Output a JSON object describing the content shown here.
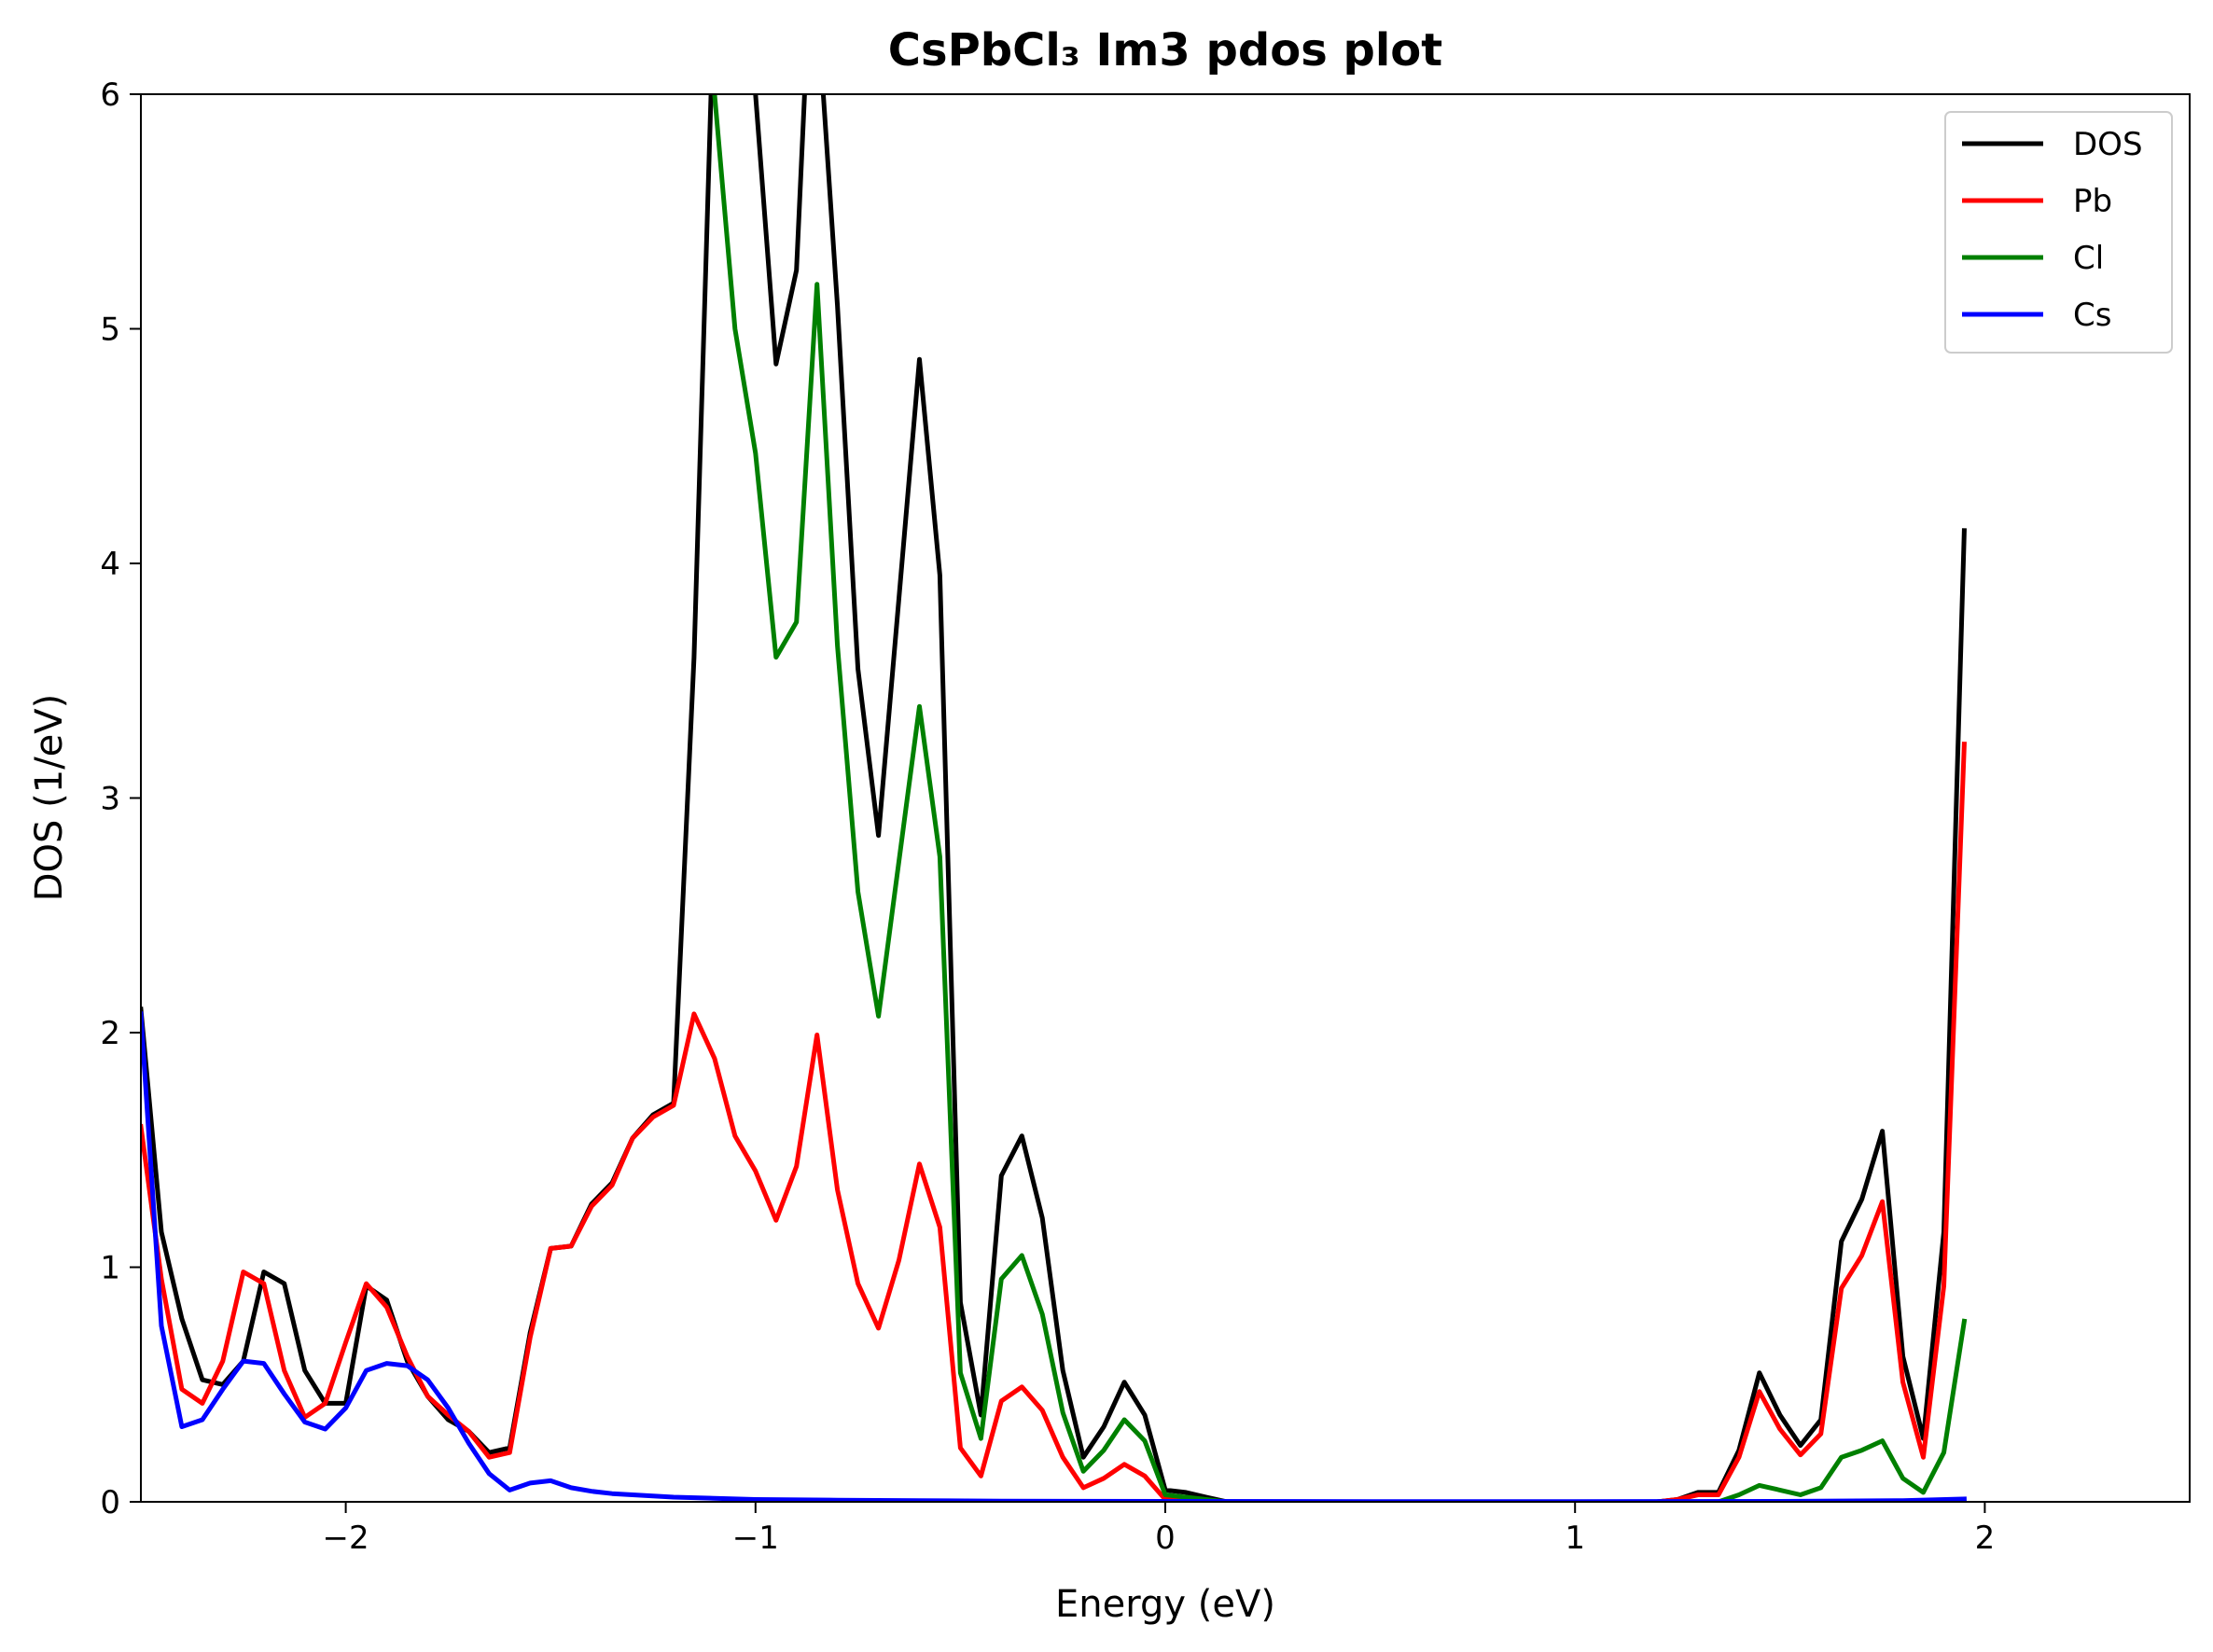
{
  "chart_data": {
    "type": "line",
    "title": "CsPbCl₃ Im3 pdos plot",
    "xlabel": "Energy (eV)",
    "ylabel": "DOS (1/eV)",
    "xlim": [
      -2.5,
      2.5
    ],
    "ylim": [
      0,
      6
    ],
    "xticks": [
      -2,
      -1,
      0,
      1,
      2
    ],
    "xtick_labels": [
      "−2",
      "−1",
      "0",
      "1",
      "2"
    ],
    "yticks": [
      0,
      1,
      2,
      3,
      4,
      5,
      6
    ],
    "ytick_labels": [
      "0",
      "1",
      "2",
      "3",
      "4",
      "5",
      "6"
    ],
    "grid": false,
    "legend_position": "top-right",
    "series": [
      {
        "name": "DOS",
        "color": "#000000",
        "points": [
          [
            -2.5,
            2.1
          ],
          [
            -2.45,
            1.15
          ],
          [
            -2.4,
            0.78
          ],
          [
            -2.35,
            0.52
          ],
          [
            -2.3,
            0.5
          ],
          [
            -2.25,
            0.6
          ],
          [
            -2.2,
            0.98
          ],
          [
            -2.15,
            0.93
          ],
          [
            -2.1,
            0.56
          ],
          [
            -2.05,
            0.42
          ],
          [
            -2.0,
            0.42
          ],
          [
            -1.95,
            0.92
          ],
          [
            -1.9,
            0.86
          ],
          [
            -1.85,
            0.6
          ],
          [
            -1.8,
            0.45
          ],
          [
            -1.75,
            0.35
          ],
          [
            -1.7,
            0.3
          ],
          [
            -1.65,
            0.21
          ],
          [
            -1.6,
            0.23
          ],
          [
            -1.55,
            0.72
          ],
          [
            -1.5,
            1.08
          ],
          [
            -1.45,
            1.09
          ],
          [
            -1.4,
            1.27
          ],
          [
            -1.35,
            1.36
          ],
          [
            -1.3,
            1.55
          ],
          [
            -1.25,
            1.65
          ],
          [
            -1.2,
            1.7
          ],
          [
            -1.15,
            3.6
          ],
          [
            -1.1,
            6.5
          ],
          [
            -1.05,
            6.4
          ],
          [
            -1.0,
            6.0
          ],
          [
            -0.95,
            4.85
          ],
          [
            -0.9,
            5.25
          ],
          [
            -0.875,
            6.2
          ],
          [
            -0.85,
            6.4
          ],
          [
            -0.8,
            5.1
          ],
          [
            -0.75,
            3.55
          ],
          [
            -0.7,
            2.84
          ],
          [
            -0.65,
            3.85
          ],
          [
            -0.6,
            4.87
          ],
          [
            -0.55,
            3.95
          ],
          [
            -0.5,
            0.85
          ],
          [
            -0.45,
            0.37
          ],
          [
            -0.4,
            1.39
          ],
          [
            -0.35,
            1.56
          ],
          [
            -0.3,
            1.21
          ],
          [
            -0.25,
            0.56
          ],
          [
            -0.2,
            0.19
          ],
          [
            -0.15,
            0.32
          ],
          [
            -0.1,
            0.51
          ],
          [
            -0.05,
            0.37
          ],
          [
            0.0,
            0.05
          ],
          [
            0.05,
            0.04
          ],
          [
            0.1,
            0.02
          ],
          [
            0.15,
            0.0
          ],
          [
            0.2,
            0.0
          ],
          [
            0.5,
            0.0
          ],
          [
            1.0,
            0.0
          ],
          [
            1.2,
            0.0
          ],
          [
            1.25,
            0.01
          ],
          [
            1.3,
            0.04
          ],
          [
            1.35,
            0.04
          ],
          [
            1.4,
            0.22
          ],
          [
            1.45,
            0.55
          ],
          [
            1.5,
            0.37
          ],
          [
            1.55,
            0.24
          ],
          [
            1.6,
            0.35
          ],
          [
            1.65,
            1.11
          ],
          [
            1.7,
            1.29
          ],
          [
            1.75,
            1.58
          ],
          [
            1.8,
            0.62
          ],
          [
            1.85,
            0.27
          ],
          [
            1.9,
            1.15
          ],
          [
            1.95,
            4.14
          ]
        ]
      },
      {
        "name": "Pb",
        "color": "#ff0000",
        "points": [
          [
            -2.5,
            1.6
          ],
          [
            -2.45,
            0.95
          ],
          [
            -2.4,
            0.48
          ],
          [
            -2.35,
            0.42
          ],
          [
            -2.3,
            0.6
          ],
          [
            -2.25,
            0.98
          ],
          [
            -2.2,
            0.93
          ],
          [
            -2.15,
            0.56
          ],
          [
            -2.1,
            0.36
          ],
          [
            -2.05,
            0.42
          ],
          [
            -2.0,
            0.68
          ],
          [
            -1.95,
            0.93
          ],
          [
            -1.9,
            0.83
          ],
          [
            -1.85,
            0.62
          ],
          [
            -1.8,
            0.45
          ],
          [
            -1.75,
            0.37
          ],
          [
            -1.7,
            0.3
          ],
          [
            -1.65,
            0.19
          ],
          [
            -1.6,
            0.21
          ],
          [
            -1.55,
            0.7
          ],
          [
            -1.5,
            1.08
          ],
          [
            -1.45,
            1.09
          ],
          [
            -1.4,
            1.26
          ],
          [
            -1.35,
            1.35
          ],
          [
            -1.3,
            1.55
          ],
          [
            -1.25,
            1.64
          ],
          [
            -1.2,
            1.69
          ],
          [
            -1.15,
            2.08
          ],
          [
            -1.1,
            1.89
          ],
          [
            -1.05,
            1.56
          ],
          [
            -1.0,
            1.41
          ],
          [
            -0.95,
            1.2
          ],
          [
            -0.9,
            1.43
          ],
          [
            -0.85,
            1.99
          ],
          [
            -0.8,
            1.33
          ],
          [
            -0.75,
            0.93
          ],
          [
            -0.7,
            0.74
          ],
          [
            -0.65,
            1.03
          ],
          [
            -0.6,
            1.44
          ],
          [
            -0.55,
            1.17
          ],
          [
            -0.5,
            0.23
          ],
          [
            -0.45,
            0.11
          ],
          [
            -0.4,
            0.43
          ],
          [
            -0.35,
            0.49
          ],
          [
            -0.3,
            0.39
          ],
          [
            -0.25,
            0.19
          ],
          [
            -0.2,
            0.06
          ],
          [
            -0.15,
            0.1
          ],
          [
            -0.1,
            0.16
          ],
          [
            -0.05,
            0.11
          ],
          [
            0.0,
            0.01
          ],
          [
            0.05,
            0.01
          ],
          [
            0.1,
            0.0
          ],
          [
            0.5,
            0.0
          ],
          [
            1.0,
            0.0
          ],
          [
            1.2,
            0.0
          ],
          [
            1.25,
            0.01
          ],
          [
            1.3,
            0.03
          ],
          [
            1.35,
            0.03
          ],
          [
            1.4,
            0.19
          ],
          [
            1.45,
            0.47
          ],
          [
            1.5,
            0.31
          ],
          [
            1.55,
            0.2
          ],
          [
            1.6,
            0.29
          ],
          [
            1.65,
            0.91
          ],
          [
            1.7,
            1.05
          ],
          [
            1.75,
            1.28
          ],
          [
            1.8,
            0.51
          ],
          [
            1.85,
            0.19
          ],
          [
            1.9,
            0.92
          ],
          [
            1.95,
            3.23
          ]
        ]
      },
      {
        "name": "Cl",
        "color": "#008000",
        "points": [
          [
            -1.1,
            6.0
          ],
          [
            -1.05,
            5.0
          ],
          [
            -1.0,
            4.47
          ],
          [
            -0.95,
            3.6
          ],
          [
            -0.9,
            3.75
          ],
          [
            -0.85,
            5.19
          ],
          [
            -0.8,
            3.65
          ],
          [
            -0.75,
            2.6
          ],
          [
            -0.7,
            2.07
          ],
          [
            -0.65,
            2.73
          ],
          [
            -0.6,
            3.39
          ],
          [
            -0.55,
            2.75
          ],
          [
            -0.5,
            0.55
          ],
          [
            -0.45,
            0.27
          ],
          [
            -0.4,
            0.95
          ],
          [
            -0.35,
            1.05
          ],
          [
            -0.3,
            0.8
          ],
          [
            -0.25,
            0.38
          ],
          [
            -0.2,
            0.13
          ],
          [
            -0.15,
            0.22
          ],
          [
            -0.1,
            0.35
          ],
          [
            -0.05,
            0.26
          ],
          [
            0.0,
            0.03
          ],
          [
            0.05,
            0.02
          ],
          [
            0.1,
            0.01
          ],
          [
            0.15,
            0.0
          ],
          [
            0.5,
            0.0
          ],
          [
            1.0,
            0.0
          ],
          [
            1.35,
            0.0
          ],
          [
            1.4,
            0.03
          ],
          [
            1.45,
            0.07
          ],
          [
            1.5,
            0.05
          ],
          [
            1.55,
            0.03
          ],
          [
            1.6,
            0.06
          ],
          [
            1.65,
            0.19
          ],
          [
            1.7,
            0.22
          ],
          [
            1.75,
            0.26
          ],
          [
            1.8,
            0.1
          ],
          [
            1.85,
            0.04
          ],
          [
            1.9,
            0.21
          ],
          [
            1.95,
            0.77
          ]
        ]
      },
      {
        "name": "Cs",
        "color": "#0000ff",
        "points": [
          [
            -2.5,
            2.08
          ],
          [
            -2.45,
            0.75
          ],
          [
            -2.4,
            0.32
          ],
          [
            -2.35,
            0.35
          ],
          [
            -2.3,
            0.48
          ],
          [
            -2.25,
            0.6
          ],
          [
            -2.2,
            0.59
          ],
          [
            -2.15,
            0.46
          ],
          [
            -2.1,
            0.34
          ],
          [
            -2.05,
            0.31
          ],
          [
            -2.0,
            0.4
          ],
          [
            -1.95,
            0.56
          ],
          [
            -1.9,
            0.59
          ],
          [
            -1.85,
            0.58
          ],
          [
            -1.8,
            0.52
          ],
          [
            -1.75,
            0.4
          ],
          [
            -1.7,
            0.25
          ],
          [
            -1.65,
            0.12
          ],
          [
            -1.6,
            0.05
          ],
          [
            -1.55,
            0.08
          ],
          [
            -1.5,
            0.09
          ],
          [
            -1.45,
            0.06
          ],
          [
            -1.4,
            0.045
          ],
          [
            -1.35,
            0.035
          ],
          [
            -1.3,
            0.03
          ],
          [
            -1.25,
            0.025
          ],
          [
            -1.2,
            0.02
          ],
          [
            -1.1,
            0.015
          ],
          [
            -1.0,
            0.01
          ],
          [
            -0.8,
            0.007
          ],
          [
            -0.6,
            0.005
          ],
          [
            -0.4,
            0.003
          ],
          [
            0.0,
            0.002
          ],
          [
            0.5,
            0.001
          ],
          [
            1.0,
            0.001
          ],
          [
            1.5,
            0.002
          ],
          [
            1.8,
            0.005
          ],
          [
            1.95,
            0.012
          ]
        ]
      }
    ]
  }
}
